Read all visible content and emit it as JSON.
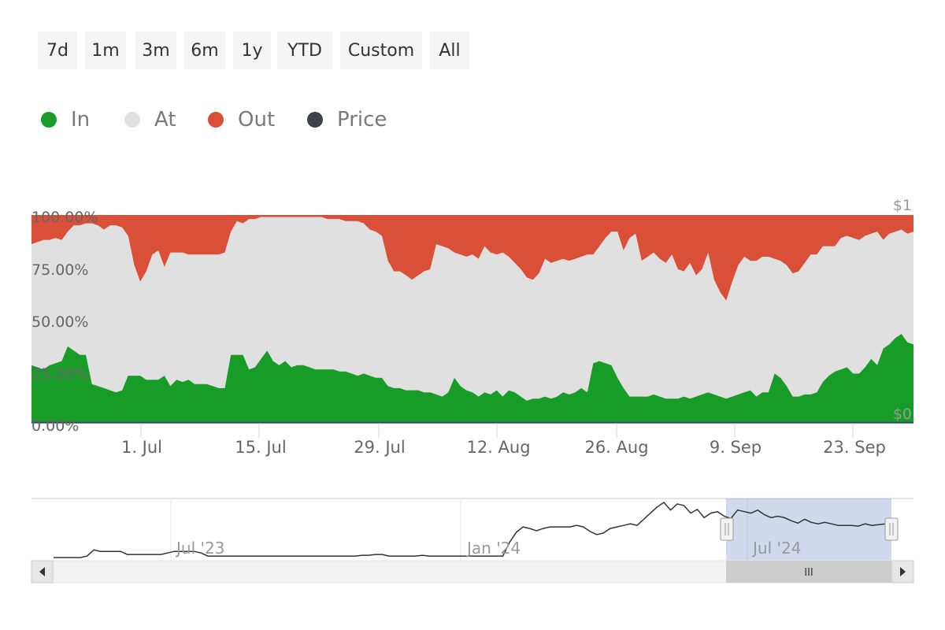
{
  "range_selector": {
    "buttons": [
      {
        "label": "7d"
      },
      {
        "label": "1m"
      },
      {
        "label": "3m"
      },
      {
        "label": "6m"
      },
      {
        "label": "1y"
      },
      {
        "label": "YTD"
      },
      {
        "label": "Custom"
      },
      {
        "label": "All"
      }
    ]
  },
  "legend": {
    "items": [
      {
        "label": "In",
        "color": "#189c28"
      },
      {
        "label": "At",
        "color": "#e0e0e0"
      },
      {
        "label": "Out",
        "color": "#d94f38"
      },
      {
        "label": "Price",
        "color": "#3d4147"
      }
    ]
  },
  "chart_data": {
    "type": "area",
    "stacking": "percent",
    "x_tick_labels": [
      "1. Jul",
      "15. Jul",
      "29. Jul",
      "12. Aug",
      "26. Aug",
      "9. Sep",
      "23. Sep"
    ],
    "y_tick_labels": [
      "0.00%",
      "25.00%",
      "50.00%",
      "75.00%",
      "100.00%"
    ],
    "y_range": [
      0,
      100
    ],
    "right_axis_labels": {
      "top": "$1",
      "bottom": "$0"
    },
    "grid": false,
    "legend_placement": "top-left",
    "series_in": {
      "name": "In",
      "color": "#189c28",
      "values": [
        28,
        27,
        26,
        28,
        29,
        30,
        37,
        35,
        33,
        33,
        19,
        18,
        17,
        16,
        15,
        16,
        23,
        23,
        23,
        21,
        21,
        21,
        23,
        18,
        21,
        20,
        21,
        19,
        19,
        19,
        18,
        17,
        17,
        33,
        33,
        33,
        26,
        27,
        31,
        35,
        30,
        28,
        30,
        27,
        28,
        28,
        27,
        26,
        26,
        26,
        26,
        25,
        25,
        24,
        23,
        24,
        23,
        22,
        22,
        18,
        17,
        17,
        16,
        16,
        16,
        15,
        15,
        14,
        13,
        15,
        22,
        18,
        16,
        15,
        13,
        15,
        14,
        16,
        13,
        16,
        15,
        13,
        11,
        12,
        12,
        13,
        12,
        13,
        15,
        14,
        15,
        17,
        15,
        29,
        30,
        29,
        28,
        22,
        17,
        13,
        13,
        13,
        13,
        14,
        13,
        12,
        12,
        12,
        13,
        12,
        13,
        14,
        15,
        14,
        13,
        12,
        13,
        14,
        15,
        16,
        13,
        15,
        15,
        24,
        22,
        18,
        13,
        13,
        14,
        14,
        15,
        20,
        23,
        25,
        26,
        27,
        24,
        24,
        27,
        31,
        28,
        36,
        38,
        41,
        43,
        39,
        38
      ]
    },
    "series_at": {
      "name": "At",
      "color": "#e0e0e0",
      "values": [
        58,
        60,
        62,
        60,
        60,
        58,
        55,
        60,
        62,
        63,
        77,
        77,
        76,
        79,
        80,
        78,
        67,
        53,
        45,
        52,
        60,
        62,
        52,
        64,
        61,
        62,
        60,
        62,
        62,
        62,
        63,
        64,
        65,
        59,
        64,
        63,
        72,
        71,
        68,
        64,
        69,
        71,
        69,
        72,
        71,
        71,
        72,
        73,
        73,
        72,
        72,
        73,
        72,
        73,
        74,
        72,
        70,
        70,
        68,
        60,
        56,
        56,
        55,
        53,
        55,
        58,
        59,
        72,
        72,
        69,
        60,
        63,
        64,
        66,
        66,
        70,
        68,
        65,
        69,
        64,
        62,
        61,
        59,
        57,
        60,
        66,
        65,
        65,
        64,
        64,
        64,
        63,
        66,
        52,
        55,
        60,
        64,
        70,
        66,
        76,
        78,
        65,
        67,
        68,
        66,
        65,
        69,
        62,
        60,
        65,
        58,
        60,
        67,
        55,
        50,
        47,
        55,
        62,
        65,
        62,
        65,
        65,
        65,
        55,
        56,
        58,
        59,
        60,
        63,
        67,
        66,
        65,
        62,
        60,
        63,
        63,
        65,
        64,
        63,
        60,
        64,
        52,
        53,
        51,
        50,
        52,
        54
      ]
    },
    "series_out": {
      "name": "Out",
      "color": "#d94f38",
      "values": [
        14,
        13,
        12,
        12,
        11,
        12,
        8,
        5,
        5,
        4,
        4,
        5,
        7,
        5,
        5,
        6,
        10,
        24,
        32,
        27,
        19,
        17,
        25,
        18,
        18,
        18,
        19,
        19,
        19,
        19,
        19,
        19,
        18,
        8,
        3,
        4,
        2,
        2,
        1,
        1,
        1,
        1,
        1,
        1,
        1,
        1,
        1,
        1,
        1,
        2,
        2,
        2,
        3,
        3,
        3,
        4,
        7,
        8,
        10,
        22,
        27,
        27,
        29,
        31,
        29,
        27,
        26,
        14,
        15,
        16,
        18,
        19,
        20,
        19,
        21,
        15,
        18,
        19,
        18,
        20,
        23,
        26,
        30,
        31,
        28,
        21,
        23,
        22,
        21,
        22,
        21,
        20,
        19,
        19,
        15,
        11,
        8,
        8,
        17,
        11,
        9,
        22,
        20,
        18,
        21,
        23,
        19,
        26,
        27,
        23,
        29,
        26,
        18,
        31,
        37,
        41,
        32,
        24,
        20,
        22,
        22,
        20,
        20,
        21,
        22,
        24,
        28,
        27,
        23,
        19,
        19,
        15,
        15,
        15,
        11,
        10,
        11,
        12,
        10,
        9,
        8,
        12,
        9,
        8,
        7,
        9,
        8
      ]
    },
    "navigator": {
      "series_name": "Price",
      "tick_labels": [
        "Jul '23",
        "Jan '24",
        "Jul '24"
      ],
      "values": [
        0,
        0,
        0,
        0,
        0,
        2,
        10,
        8,
        8,
        8,
        8,
        4,
        4,
        4,
        4,
        4,
        4,
        6,
        8,
        8,
        8,
        8,
        6,
        2,
        2,
        2,
        2,
        2,
        2,
        2,
        2,
        2,
        2,
        2,
        2,
        2,
        2,
        2,
        2,
        2,
        2,
        2,
        2,
        2,
        2,
        2,
        3,
        3,
        4,
        4,
        2,
        2,
        2,
        2,
        2,
        3,
        2,
        2,
        2,
        2,
        2,
        2,
        2,
        2,
        2,
        2,
        2,
        2,
        20,
        33,
        40,
        38,
        35,
        38,
        40,
        40,
        40,
        40,
        42,
        40,
        34,
        30,
        32,
        38,
        40,
        42,
        44,
        42,
        50,
        58,
        66,
        72,
        62,
        70,
        68,
        58,
        63,
        52,
        58,
        60,
        54,
        51,
        62,
        60,
        58,
        62,
        56,
        52,
        54,
        52,
        48,
        45,
        50,
        46,
        44,
        46,
        44,
        42,
        42,
        42,
        41,
        44,
        42,
        43,
        44
      ]
    }
  },
  "scrollbar": {
    "grip_label": "III"
  }
}
